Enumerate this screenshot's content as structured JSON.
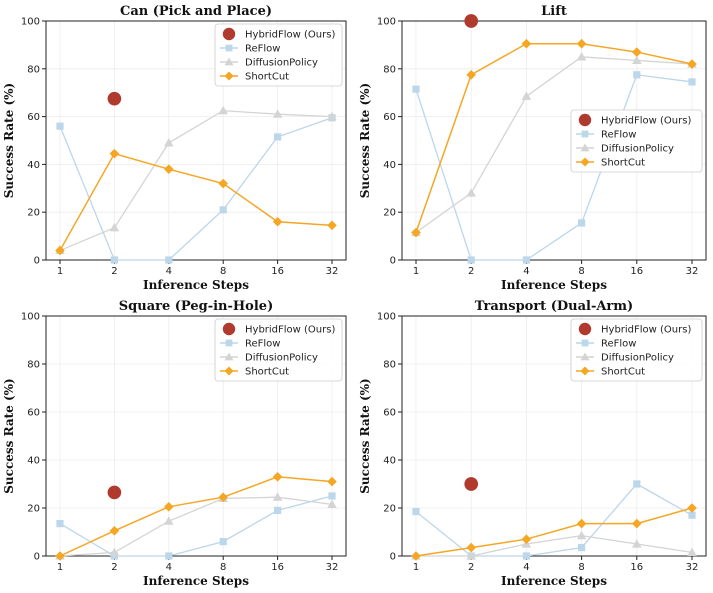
{
  "figure_title": "",
  "chart_data": [
    {
      "type": "line",
      "title": "Can (Pick and Place)",
      "xlabel": "Inference Steps",
      "ylabel": "Success Rate (%)",
      "x_categories": [
        "1",
        "2",
        "4",
        "8",
        "16",
        "32"
      ],
      "ylim": [
        0,
        100
      ],
      "y_ticks": [
        0,
        20,
        40,
        60,
        80,
        100
      ],
      "legend_position": "top-right",
      "grid": true,
      "series": [
        {
          "name": "HybridFlow (Ours)",
          "color": "#b03a2e",
          "marker": "circle",
          "line": false,
          "values": [
            null,
            67.5,
            null,
            null,
            null,
            null
          ]
        },
        {
          "name": "ReFlow",
          "color": "#bcd6ea",
          "marker": "square",
          "line": true,
          "values": [
            56,
            0,
            0,
            21,
            51.5,
            59.5
          ]
        },
        {
          "name": "DiffusionPolicy",
          "color": "#d4d4d4",
          "marker": "triangle",
          "line": true,
          "values": [
            4,
            13.5,
            49,
            62.5,
            61,
            60
          ]
        },
        {
          "name": "ShortCut",
          "color": "#f5a623",
          "marker": "diamond",
          "line": true,
          "values": [
            4,
            44.5,
            38,
            32,
            16,
            14.5
          ]
        }
      ]
    },
    {
      "type": "line",
      "title": "Lift",
      "xlabel": "Inference Steps",
      "ylabel": "Success Rate (%)",
      "x_categories": [
        "1",
        "2",
        "4",
        "8",
        "16",
        "32"
      ],
      "ylim": [
        0,
        100
      ],
      "y_ticks": [
        0,
        20,
        40,
        60,
        80,
        100
      ],
      "legend_position": "center-right",
      "grid": true,
      "series": [
        {
          "name": "HybridFlow (Ours)",
          "color": "#b03a2e",
          "marker": "circle",
          "line": false,
          "values": [
            null,
            100,
            null,
            null,
            null,
            null
          ]
        },
        {
          "name": "ReFlow",
          "color": "#bcd6ea",
          "marker": "square",
          "line": true,
          "values": [
            71.5,
            0,
            0,
            15.5,
            77.5,
            74.5
          ]
        },
        {
          "name": "DiffusionPolicy",
          "color": "#d4d4d4",
          "marker": "triangle",
          "line": true,
          "values": [
            11.5,
            28,
            68.5,
            85,
            83.5,
            82
          ]
        },
        {
          "name": "ShortCut",
          "color": "#f5a623",
          "marker": "diamond",
          "line": true,
          "values": [
            11.5,
            77.5,
            90.5,
            90.5,
            87,
            82
          ]
        }
      ]
    },
    {
      "type": "line",
      "title": "Square (Peg-in-Hole)",
      "xlabel": "Inference Steps",
      "ylabel": "Success Rate (%)",
      "x_categories": [
        "1",
        "2",
        "4",
        "8",
        "16",
        "32"
      ],
      "ylim": [
        0,
        100
      ],
      "y_ticks": [
        0,
        20,
        40,
        60,
        80,
        100
      ],
      "legend_position": "top-right",
      "grid": true,
      "series": [
        {
          "name": "HybridFlow (Ours)",
          "color": "#b03a2e",
          "marker": "circle",
          "line": false,
          "values": [
            null,
            26.5,
            null,
            null,
            null,
            null
          ]
        },
        {
          "name": "ReFlow",
          "color": "#bcd6ea",
          "marker": "square",
          "line": true,
          "values": [
            13.5,
            0,
            0,
            6,
            19,
            25
          ]
        },
        {
          "name": "DiffusionPolicy",
          "color": "#d4d4d4",
          "marker": "triangle",
          "line": true,
          "values": [
            0,
            1.5,
            14.5,
            24,
            24.5,
            21.5
          ]
        },
        {
          "name": "ShortCut",
          "color": "#f5a623",
          "marker": "diamond",
          "line": true,
          "values": [
            0,
            10.5,
            20.5,
            24.5,
            33,
            31
          ]
        }
      ]
    },
    {
      "type": "line",
      "title": "Transport (Dual-Arm)",
      "xlabel": "Inference Steps",
      "ylabel": "Success Rate (%)",
      "x_categories": [
        "1",
        "2",
        "4",
        "8",
        "16",
        "32"
      ],
      "ylim": [
        0,
        100
      ],
      "y_ticks": [
        0,
        20,
        40,
        60,
        80,
        100
      ],
      "legend_position": "top-right",
      "grid": true,
      "series": [
        {
          "name": "HybridFlow (Ours)",
          "color": "#b03a2e",
          "marker": "circle",
          "line": false,
          "values": [
            null,
            30,
            null,
            null,
            null,
            null
          ]
        },
        {
          "name": "ReFlow",
          "color": "#bcd6ea",
          "marker": "square",
          "line": true,
          "values": [
            18.5,
            0,
            0,
            3.5,
            30,
            17
          ]
        },
        {
          "name": "DiffusionPolicy",
          "color": "#d4d4d4",
          "marker": "triangle",
          "line": true,
          "values": [
            0,
            0,
            5,
            8.5,
            5,
            1.5
          ]
        },
        {
          "name": "ShortCut",
          "color": "#f5a623",
          "marker": "diamond",
          "line": true,
          "values": [
            0,
            3.5,
            7,
            13.5,
            13.5,
            20
          ]
        }
      ]
    }
  ]
}
